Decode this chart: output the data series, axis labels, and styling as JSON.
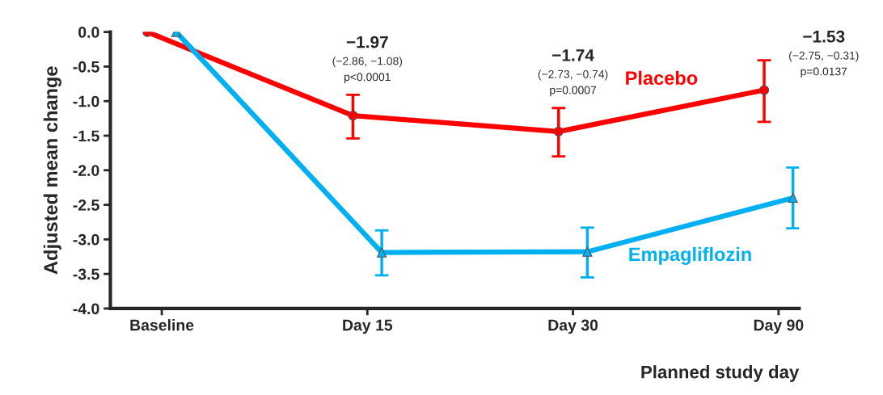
{
  "chart_data": {
    "type": "line",
    "xlabel": "Planned study day",
    "ylabel": "Adjusted mean change",
    "categories": [
      "Baseline",
      "Day 15",
      "Day 30",
      "Day 90"
    ],
    "ylim": [
      -4.0,
      0.0
    ],
    "yticks": [
      {
        "value": 0,
        "label": "0.0"
      },
      {
        "value": -0.5,
        "label": "-0.5"
      },
      {
        "value": -1,
        "label": "-1.0"
      },
      {
        "value": -1.5,
        "label": "-1.5"
      },
      {
        "value": -2,
        "label": "-2.0"
      },
      {
        "value": -2.5,
        "label": "-2.5"
      },
      {
        "value": -3,
        "label": "-3.0"
      },
      {
        "value": -3.5,
        "label": "-3.5"
      },
      {
        "value": -4,
        "label": "-4.0"
      }
    ],
    "grid": false,
    "legend": false,
    "series": [
      {
        "name": "Placebo",
        "color": "#ff0000",
        "marker": "circle",
        "values": [
          0.0,
          -1.21,
          -1.44,
          -0.84
        ],
        "errors": [
          null,
          [
            -1.54,
            -0.91
          ],
          [
            -1.8,
            -1.1
          ],
          [
            -1.3,
            -0.41
          ]
        ]
      },
      {
        "name": "Empagliflozin",
        "color": "#00b0f0",
        "marker": "triangle",
        "values": [
          0.0,
          -3.19,
          -3.18,
          -2.4
        ],
        "errors": [
          null,
          [
            -3.52,
            -2.87
          ],
          [
            -3.55,
            -2.83
          ],
          [
            -2.84,
            -1.96
          ]
        ]
      }
    ],
    "annotations": [
      "−1.97",
      "(−2.86, −1.08)",
      "p<0.0001",
      "−1.74",
      "(−2.73, −0.74)",
      "p=0.0007",
      "−1.53",
      "(−2.75, −0.31)",
      "p=0.0137"
    ]
  }
}
